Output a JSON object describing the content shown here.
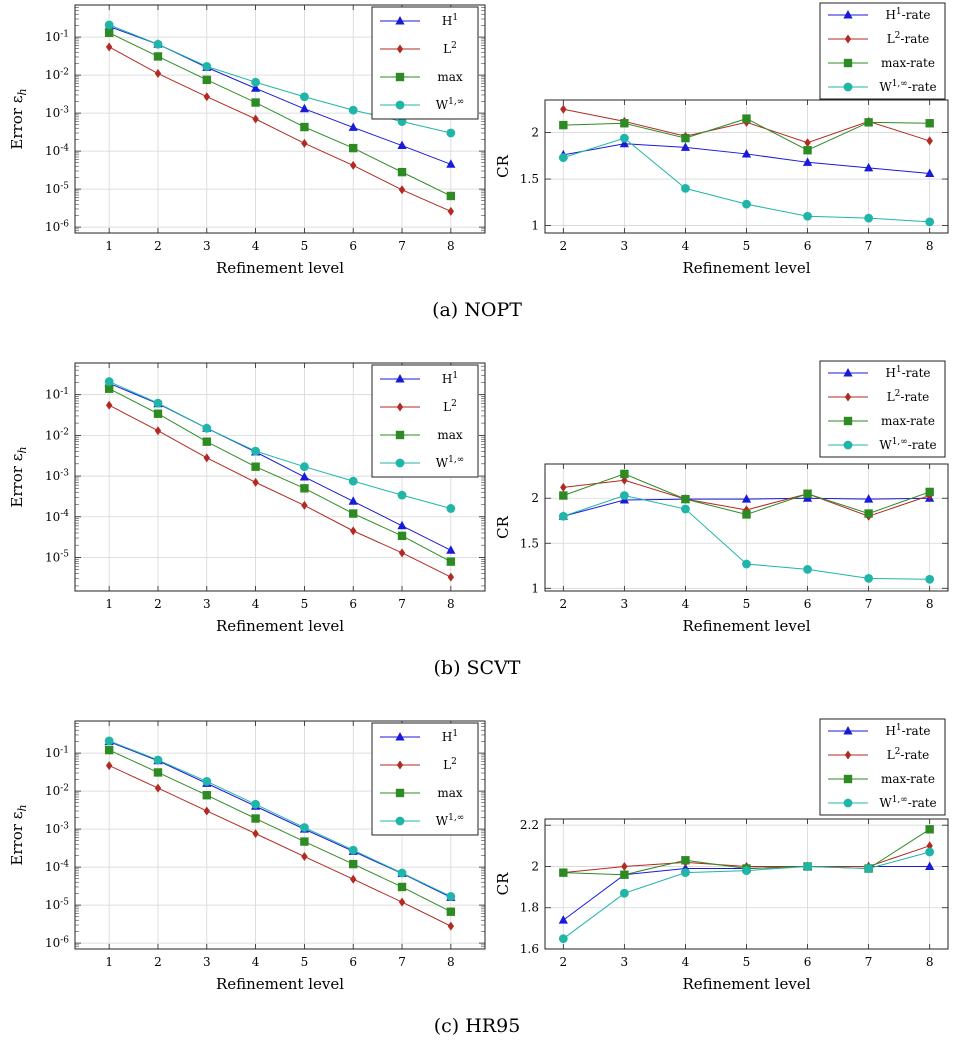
{
  "colors": {
    "H1": "#1a1adb",
    "L2": "#b22a22",
    "max": "#2e8b24",
    "W1inf": "#1fb5a8"
  },
  "chart_data": [
    {
      "type": "line",
      "panel": "a",
      "plot": "error",
      "yscale": "log",
      "xlabel": "Refinement level",
      "ylabel": "Error ε_h",
      "x": [
        1,
        2,
        3,
        4,
        5,
        6,
        7,
        8
      ],
      "xlim": [
        0.3,
        8.7
      ],
      "ylim": [
        7e-07,
        0.7
      ],
      "yticks": [
        1e-06,
        1e-05,
        0.0001,
        0.001,
        0.01,
        0.1
      ],
      "yticklabels": [
        "10^-6",
        "10^-5",
        "10^-4",
        "10^-3",
        "10^-2",
        "10^-1"
      ],
      "grid": true,
      "legend": "top-right",
      "series": [
        {
          "name": "H^1",
          "marker": "triangle",
          "color": "#1a1adb",
          "values": [
            0.19,
            0.065,
            0.016,
            0.0045,
            0.0013,
            0.00042,
            0.00014,
            4.5e-05
          ]
        },
        {
          "name": "L^2",
          "marker": "diamond",
          "color": "#b22a22",
          "values": [
            0.055,
            0.011,
            0.0027,
            0.0007,
            0.00016,
            4.2e-05,
            9.6e-06,
            2.6e-06
          ]
        },
        {
          "name": "max",
          "marker": "square",
          "color": "#2e8b24",
          "values": [
            0.13,
            0.031,
            0.0075,
            0.0019,
            0.00043,
            0.00012,
            2.8e-05,
            6.6e-06
          ]
        },
        {
          "name": "W^{1,∞}",
          "marker": "circle",
          "color": "#1fb5a8",
          "values": [
            0.21,
            0.065,
            0.017,
            0.0065,
            0.0027,
            0.0012,
            0.0006,
            0.0003
          ]
        }
      ]
    },
    {
      "type": "line",
      "panel": "a",
      "plot": "rate",
      "xlabel": "Refinement level",
      "ylabel": "CR",
      "x": [
        2,
        3,
        4,
        5,
        6,
        7,
        8
      ],
      "xlim": [
        1.7,
        8.3
      ],
      "ylim": [
        0.92,
        2.35
      ],
      "yticks": [
        1,
        1.5,
        2
      ],
      "yticklabels": [
        "1",
        "1.5",
        "2"
      ],
      "grid": true,
      "legend": "above-right",
      "series": [
        {
          "name": "H^1-rate",
          "marker": "triangle",
          "color": "#1a1adb",
          "values": [
            1.76,
            1.88,
            1.84,
            1.77,
            1.68,
            1.62,
            1.56
          ]
        },
        {
          "name": "L^2-rate",
          "marker": "diamond",
          "color": "#b22a22",
          "values": [
            2.25,
            2.12,
            1.96,
            2.11,
            1.89,
            2.12,
            1.91
          ]
        },
        {
          "name": "max-rate",
          "marker": "square",
          "color": "#2e8b24",
          "values": [
            2.08,
            2.1,
            1.94,
            2.15,
            1.81,
            2.11,
            2.1
          ]
        },
        {
          "name": "W^{1,∞}-rate",
          "marker": "circle",
          "color": "#1fb5a8",
          "values": [
            1.73,
            1.94,
            1.4,
            1.23,
            1.1,
            1.08,
            1.04
          ]
        }
      ]
    },
    {
      "type": "line",
      "panel": "b",
      "plot": "error",
      "yscale": "log",
      "xlabel": "Refinement level",
      "ylabel": "Error ε_h",
      "x": [
        1,
        2,
        3,
        4,
        5,
        6,
        7,
        8
      ],
      "xlim": [
        0.3,
        8.7
      ],
      "ylim": [
        1.5e-06,
        0.6
      ],
      "yticks": [
        1e-05,
        0.0001,
        0.001,
        0.01,
        0.1
      ],
      "yticklabels": [
        "10^-5",
        "10^-4",
        "10^-3",
        "10^-2",
        "10^-1"
      ],
      "grid": true,
      "legend": "top-right",
      "series": [
        {
          "name": "H^1",
          "marker": "triangle",
          "color": "#1a1adb",
          "values": [
            0.19,
            0.06,
            0.015,
            0.0039,
            0.00095,
            0.00024,
            6e-05,
            1.5e-05
          ]
        },
        {
          "name": "L^2",
          "marker": "diamond",
          "color": "#b22a22",
          "values": [
            0.055,
            0.013,
            0.0028,
            0.0007,
            0.00019,
            4.5e-05,
            1.3e-05,
            3.3e-06
          ]
        },
        {
          "name": "max",
          "marker": "square",
          "color": "#2e8b24",
          "values": [
            0.14,
            0.034,
            0.007,
            0.0017,
            0.0005,
            0.00012,
            3.4e-05,
            7.9e-06
          ]
        },
        {
          "name": "W^{1,∞}",
          "marker": "circle",
          "color": "#1fb5a8",
          "values": [
            0.21,
            0.062,
            0.015,
            0.0041,
            0.0017,
            0.00075,
            0.00034,
            0.00016
          ]
        }
      ]
    },
    {
      "type": "line",
      "panel": "b",
      "plot": "rate",
      "xlabel": "Refinement level",
      "ylabel": "CR",
      "x": [
        2,
        3,
        4,
        5,
        6,
        7,
        8
      ],
      "xlim": [
        1.7,
        8.3
      ],
      "ylim": [
        0.97,
        2.38
      ],
      "yticks": [
        1,
        1.5,
        2
      ],
      "yticklabels": [
        "1",
        "1.5",
        "2"
      ],
      "grid": true,
      "legend": "above-right",
      "series": [
        {
          "name": "H^1-rate",
          "marker": "triangle",
          "color": "#1a1adb",
          "values": [
            1.8,
            1.98,
            1.99,
            1.99,
            2.0,
            1.99,
            2.0
          ]
        },
        {
          "name": "L^2-rate",
          "marker": "diamond",
          "color": "#b22a22",
          "values": [
            2.12,
            2.2,
            1.99,
            1.87,
            2.05,
            1.8,
            2.03
          ]
        },
        {
          "name": "max-rate",
          "marker": "square",
          "color": "#2e8b24",
          "values": [
            2.03,
            2.27,
            1.99,
            1.82,
            2.05,
            1.83,
            2.07
          ]
        },
        {
          "name": "W^{1,∞}-rate",
          "marker": "circle",
          "color": "#1fb5a8",
          "values": [
            1.8,
            2.03,
            1.88,
            1.27,
            1.21,
            1.11,
            1.1
          ]
        }
      ]
    },
    {
      "type": "line",
      "panel": "c",
      "plot": "error",
      "yscale": "log",
      "xlabel": "Refinement level",
      "ylabel": "Error ε_h",
      "x": [
        1,
        2,
        3,
        4,
        5,
        6,
        7,
        8
      ],
      "xlim": [
        0.3,
        8.7
      ],
      "ylim": [
        7e-07,
        0.7
      ],
      "yticks": [
        1e-06,
        1e-05,
        0.0001,
        0.001,
        0.01,
        0.1
      ],
      "yticklabels": [
        "10^-6",
        "10^-5",
        "10^-4",
        "10^-3",
        "10^-2",
        "10^-1"
      ],
      "grid": true,
      "legend": "top-right",
      "series": [
        {
          "name": "H^1",
          "marker": "triangle",
          "color": "#1a1adb",
          "values": [
            0.2,
            0.063,
            0.016,
            0.004,
            0.001,
            0.00026,
            6.8e-05,
            1.6e-05
          ]
        },
        {
          "name": "L^2",
          "marker": "diamond",
          "color": "#b22a22",
          "values": [
            0.047,
            0.012,
            0.003,
            0.00076,
            0.00019,
            4.8e-05,
            1.2e-05,
            2.8e-06
          ]
        },
        {
          "name": "max",
          "marker": "square",
          "color": "#2e8b24",
          "values": [
            0.12,
            0.031,
            0.0078,
            0.0019,
            0.00047,
            0.00012,
            3e-05,
            6.7e-06
          ]
        },
        {
          "name": "W^{1,∞}",
          "marker": "circle",
          "color": "#1fb5a8",
          "values": [
            0.21,
            0.066,
            0.018,
            0.0045,
            0.0011,
            0.00028,
            7e-05,
            1.7e-05
          ]
        }
      ]
    },
    {
      "type": "line",
      "panel": "c",
      "plot": "rate",
      "xlabel": "Refinement level",
      "ylabel": "CR",
      "x": [
        2,
        3,
        4,
        5,
        6,
        7,
        8
      ],
      "xlim": [
        1.7,
        8.3
      ],
      "ylim": [
        1.6,
        2.23
      ],
      "yticks": [
        1.6,
        1.8,
        2,
        2.2
      ],
      "yticklabels": [
        "1.6",
        "1.8",
        "2",
        "2.2"
      ],
      "grid": true,
      "legend": "above-right",
      "series": [
        {
          "name": "H^1-rate",
          "marker": "triangle",
          "color": "#1a1adb",
          "values": [
            1.74,
            1.96,
            1.99,
            1.99,
            2.0,
            2.0,
            2.0
          ]
        },
        {
          "name": "L^2-rate",
          "marker": "diamond",
          "color": "#b22a22",
          "values": [
            1.97,
            2.0,
            2.02,
            2.0,
            2.0,
            2.0,
            2.1
          ]
        },
        {
          "name": "max-rate",
          "marker": "square",
          "color": "#2e8b24",
          "values": [
            1.97,
            1.96,
            2.03,
            1.99,
            2.0,
            1.99,
            2.18
          ]
        },
        {
          "name": "W^{1,∞}-rate",
          "marker": "circle",
          "color": "#1fb5a8",
          "values": [
            1.65,
            1.87,
            1.97,
            1.98,
            2.0,
            1.99,
            2.07
          ]
        }
      ]
    }
  ],
  "captions": [
    "(a) NOPT",
    "(b) SCVT",
    "(c) HR95"
  ]
}
